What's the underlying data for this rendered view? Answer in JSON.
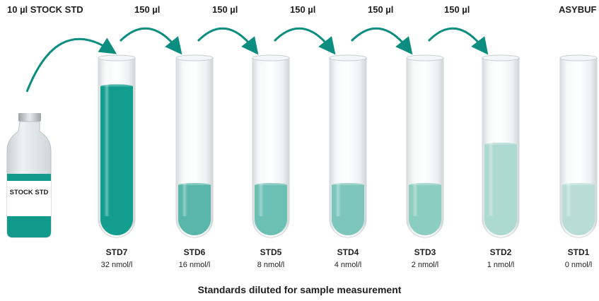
{
  "source": {
    "bottle_label": "STOCK STD",
    "transfer_label": "10 µl STOCK STD"
  },
  "transfer_step_label": "150 µl",
  "buffer_label": "ASYBUF",
  "caption": "Standards diluted for sample measurement",
  "colors": {
    "arrow": "#0b8d80",
    "glass": "#eef2f3",
    "liquid_dark": "#0c9789",
    "liquid_light": "#b3d9d4"
  },
  "tubes": [
    {
      "name": "STD7",
      "concentration": "32 nmol/l",
      "fill_fraction": 0.92,
      "color": "#129d8f"
    },
    {
      "name": "STD6",
      "concentration": "16 nmol/l",
      "fill_fraction": 0.31,
      "color": "#58b7aa"
    },
    {
      "name": "STD5",
      "concentration": "8 nmol/l",
      "fill_fraction": 0.31,
      "color": "#6cbfb3"
    },
    {
      "name": "STD4",
      "concentration": "4 nmol/l",
      "fill_fraction": 0.31,
      "color": "#7ec6bb"
    },
    {
      "name": "STD3",
      "concentration": "2 nmol/l",
      "fill_fraction": 0.31,
      "color": "#8ccdc2"
    },
    {
      "name": "STD2",
      "concentration": "1 nmol/l",
      "fill_fraction": 0.56,
      "color": "#acd9d2"
    },
    {
      "name": "STD1",
      "concentration": "0 nmol/l",
      "fill_fraction": 0.31,
      "color": "#b8ddd8"
    }
  ]
}
